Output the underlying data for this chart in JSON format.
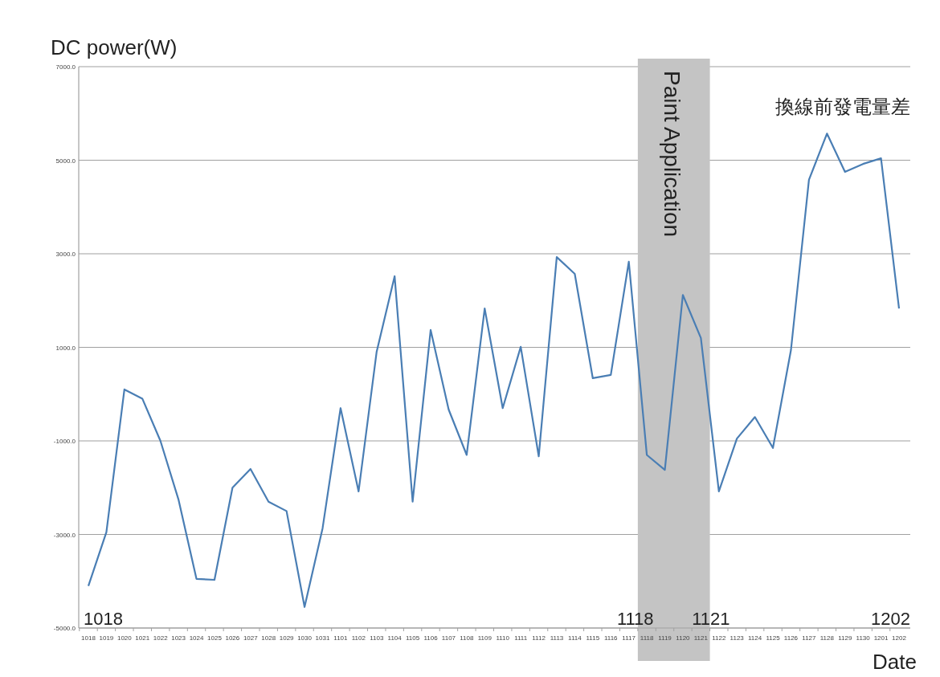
{
  "chart_data": {
    "type": "line",
    "ylabel": "DC power(W)",
    "xlabel": "Date",
    "categories": [
      "1018",
      "1019",
      "1020",
      "1021",
      "1022",
      "1023",
      "1024",
      "1025",
      "1026",
      "1027",
      "1028",
      "1029",
      "1030",
      "1031",
      "1101",
      "1102",
      "1103",
      "1104",
      "1105",
      "1106",
      "1107",
      "1108",
      "1109",
      "1110",
      "1111",
      "1112",
      "1113",
      "1114",
      "1115",
      "1116",
      "1117",
      "1118",
      "1119",
      "1120",
      "1121",
      "1122",
      "1123",
      "1124",
      "1125",
      "1126",
      "1127",
      "1128",
      "1129",
      "1130",
      "1201",
      "1202"
    ],
    "series": [
      {
        "color": "#4a7eb4",
        "values": [
          -4100,
          -2950,
          100,
          -100,
          -1000,
          -2250,
          -3950,
          -3970,
          -2000,
          -1600,
          -2300,
          -2500,
          -4550,
          -2870,
          -300,
          -2080,
          900,
          2520,
          -2300,
          1370,
          -330,
          -1300,
          1830,
          -300,
          1010,
          -1330,
          2930,
          2570,
          340,
          410,
          2830,
          -1300,
          -1620,
          2120,
          1200,
          -2080,
          -950,
          -490,
          -1150,
          940,
          4580,
          5570,
          4750,
          4920,
          5040,
          1830
        ]
      }
    ],
    "ylim": [
      -5000,
      7000
    ],
    "yticks": [
      {
        "value": -5000,
        "label": "-5000.0"
      },
      {
        "value": -3000,
        "label": "-3000.0"
      },
      {
        "value": -1000,
        "label": "-1000.0"
      },
      {
        "value": 1000,
        "label": "1000.0"
      },
      {
        "value": 3000,
        "label": "3000.0"
      },
      {
        "value": 5000,
        "label": "5000.0"
      },
      {
        "value": 7000,
        "label": "7000.0"
      }
    ],
    "grid": "y",
    "marker": "none",
    "line_style": "solid",
    "bands": [
      {
        "axis": "x",
        "from": "1118",
        "to": "1121",
        "label": "Paint Application",
        "color": "#c4c4c4"
      }
    ],
    "annotations": [
      "1018",
      "1118",
      "1121",
      "1202",
      "換線前發電量差"
    ]
  }
}
